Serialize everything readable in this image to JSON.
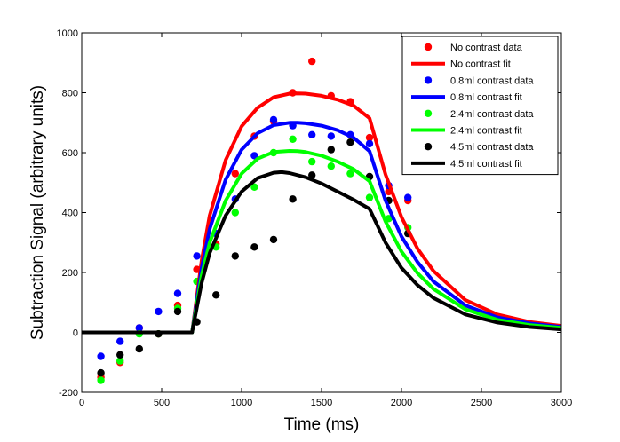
{
  "chart_data": {
    "type": "scatter",
    "title": "",
    "xlabel": "Time (ms)",
    "ylabel": "Subtraction Signal (arbitrary units)",
    "xlim": [
      0,
      3000
    ],
    "ylim": [
      -200,
      1000
    ],
    "xticks": [
      0,
      500,
      1000,
      1500,
      2000,
      2500,
      3000
    ],
    "yticks": [
      -200,
      0,
      200,
      400,
      600,
      800,
      1000
    ],
    "grid": false,
    "legend_position": "top-right",
    "series": [
      {
        "name": "No contrast data",
        "kind": "scatter",
        "color": "#ff0000",
        "x": [
          120,
          240,
          360,
          480,
          600,
          720,
          840,
          960,
          1080,
          1200,
          1320,
          1440,
          1560,
          1680,
          1800,
          1920,
          2040
        ],
        "y": [
          -150,
          -100,
          15,
          -5,
          90,
          210,
          295,
          530,
          655,
          705,
          800,
          905,
          790,
          770,
          650,
          470,
          440
        ]
      },
      {
        "name": "No contrast fit",
        "kind": "line",
        "color": "#ff0000",
        "x": [
          0,
          690,
          750,
          800,
          900,
          1000,
          1100,
          1200,
          1300,
          1350,
          1400,
          1500,
          1600,
          1700,
          1800,
          1900,
          2000,
          2100,
          2200,
          2400,
          2600,
          2800,
          3000
        ],
        "y": [
          0,
          0,
          240,
          390,
          575,
          688,
          750,
          785,
          797,
          798,
          797,
          790,
          777,
          757,
          715,
          527,
          385,
          280,
          205,
          108,
          60,
          35,
          22
        ]
      },
      {
        "name": "0.8ml contrast data",
        "kind": "scatter",
        "color": "#0000ff",
        "x": [
          120,
          240,
          360,
          480,
          600,
          720,
          840,
          960,
          1080,
          1200,
          1320,
          1440,
          1560,
          1680,
          1800,
          1920,
          2040
        ],
        "y": [
          -80,
          -30,
          15,
          70,
          130,
          255,
          330,
          445,
          590,
          710,
          690,
          660,
          655,
          660,
          630,
          490,
          450
        ]
      },
      {
        "name": "0.8ml contrast fit",
        "kind": "line",
        "color": "#0000ff",
        "x": [
          0,
          690,
          750,
          800,
          900,
          1000,
          1100,
          1200,
          1300,
          1350,
          1400,
          1500,
          1600,
          1700,
          1800,
          1900,
          2000,
          2100,
          2200,
          2400,
          2600,
          2800,
          3000
        ],
        "y": [
          0,
          0,
          215,
          345,
          510,
          610,
          665,
          692,
          700,
          700,
          698,
          690,
          675,
          650,
          605,
          440,
          320,
          235,
          170,
          90,
          50,
          30,
          18
        ]
      },
      {
        "name": "2.4ml contrast data",
        "kind": "scatter",
        "color": "#00ff00",
        "x": [
          120,
          240,
          360,
          480,
          600,
          720,
          840,
          960,
          1080,
          1200,
          1320,
          1440,
          1560,
          1680,
          1800,
          1920,
          2040
        ],
        "y": [
          -160,
          -95,
          -5,
          -5,
          80,
          170,
          285,
          400,
          485,
          600,
          645,
          570,
          555,
          530,
          450,
          380,
          350
        ]
      },
      {
        "name": "2.4ml contrast fit",
        "kind": "line",
        "color": "#00ff00",
        "x": [
          0,
          690,
          750,
          800,
          900,
          1000,
          1100,
          1200,
          1300,
          1350,
          1400,
          1500,
          1600,
          1700,
          1800,
          1900,
          2000,
          2100,
          2200,
          2400,
          2600,
          2800,
          3000
        ],
        "y": [
          0,
          0,
          190,
          300,
          440,
          530,
          580,
          602,
          606,
          605,
          602,
          590,
          570,
          545,
          505,
          370,
          270,
          198,
          145,
          77,
          42,
          25,
          15
        ]
      },
      {
        "name": "4.5ml contrast data",
        "kind": "scatter",
        "color": "#000000",
        "x": [
          120,
          240,
          360,
          480,
          600,
          720,
          840,
          960,
          1080,
          1200,
          1320,
          1440,
          1560,
          1680,
          1800,
          1920,
          2040
        ],
        "y": [
          -135,
          -75,
          -55,
          -5,
          70,
          35,
          125,
          255,
          285,
          310,
          445,
          525,
          610,
          635,
          520,
          440,
          330
        ]
      },
      {
        "name": "4.5ml contrast fit",
        "kind": "line",
        "color": "#000000",
        "x": [
          0,
          690,
          750,
          800,
          900,
          1000,
          1100,
          1200,
          1250,
          1300,
          1400,
          1500,
          1600,
          1700,
          1800,
          1900,
          2000,
          2100,
          2200,
          2400,
          2600,
          2800,
          3000
        ],
        "y": [
          0,
          0,
          165,
          265,
          390,
          470,
          515,
          533,
          535,
          532,
          518,
          497,
          470,
          443,
          412,
          300,
          215,
          158,
          115,
          60,
          33,
          18,
          10
        ]
      }
    ]
  }
}
